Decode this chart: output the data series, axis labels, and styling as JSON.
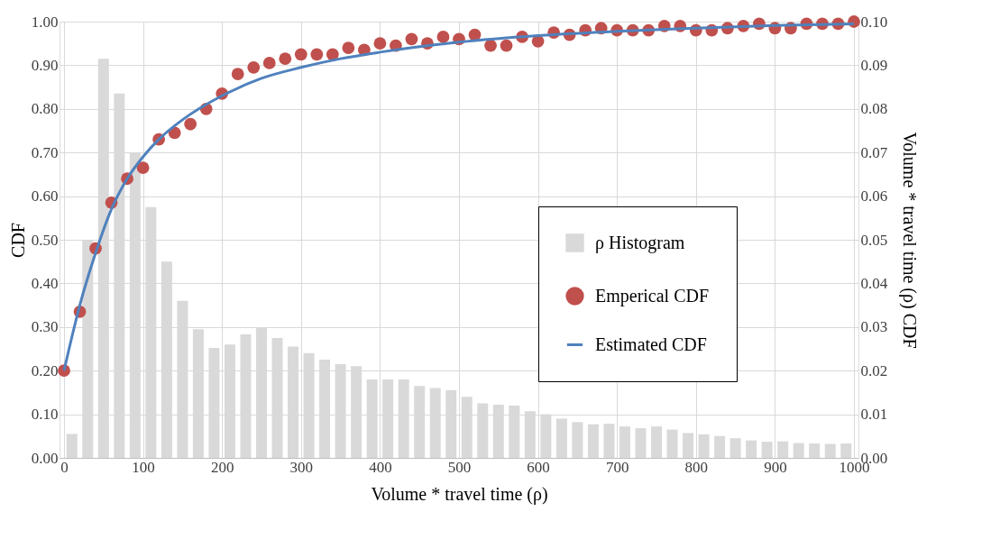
{
  "chart_data": {
    "type": "bar",
    "xlabel": "Volume * travel time (ρ)",
    "ylabel": "CDF",
    "y2label": "Volume * travel time (ρ) CDF",
    "xlim": [
      0,
      1000
    ],
    "xticks": [
      0,
      100,
      200,
      300,
      400,
      500,
      600,
      700,
      800,
      900,
      1000
    ],
    "ylim": [
      0,
      1
    ],
    "yticks": [
      {
        "value": 0,
        "label": "0.00"
      },
      {
        "value": 0.1,
        "label": "0.10"
      },
      {
        "value": 0.2,
        "label": "0.20"
      },
      {
        "value": 0.3,
        "label": "0.30"
      },
      {
        "value": 0.4,
        "label": "0.40"
      },
      {
        "value": 0.5,
        "label": "0.50"
      },
      {
        "value": 0.6,
        "label": "0.60"
      },
      {
        "value": 0.7,
        "label": "0.70"
      },
      {
        "value": 0.8,
        "label": "0.80"
      },
      {
        "value": 0.9,
        "label": "0.90"
      },
      {
        "value": 1,
        "label": "1.00"
      }
    ],
    "y2lim": [
      0,
      0.1
    ],
    "y2ticks": [
      {
        "value": 0,
        "label": "0.00"
      },
      {
        "value": 0.01,
        "label": "0.01"
      },
      {
        "value": 0.02,
        "label": "0.02"
      },
      {
        "value": 0.03,
        "label": "0.03"
      },
      {
        "value": 0.04,
        "label": "0.04"
      },
      {
        "value": 0.05,
        "label": "0.05"
      },
      {
        "value": 0.06,
        "label": "0.06"
      },
      {
        "value": 0.07,
        "label": "0.07"
      },
      {
        "value": 0.08,
        "label": "0.08"
      },
      {
        "value": 0.09,
        "label": "0.09"
      },
      {
        "value": 0.1,
        "label": "0.10"
      }
    ],
    "grid": true,
    "legend": "right",
    "series": [
      {
        "name": "ρ Histogram",
        "axis": "y2",
        "color": "#d9d9d9",
        "x": [
          10,
          30,
          50,
          70,
          90,
          110,
          130,
          150,
          170,
          190,
          210,
          230,
          250,
          270,
          290,
          310,
          330,
          350,
          370,
          390,
          410,
          430,
          450,
          470,
          490,
          510,
          530,
          550,
          570,
          590,
          610,
          630,
          650,
          670,
          690,
          710,
          730,
          750,
          770,
          790,
          810,
          830,
          850,
          870,
          890,
          910,
          930,
          950,
          970,
          990
        ],
        "values": [
          0.0055,
          0.0498,
          0.0915,
          0.0835,
          0.07,
          0.0575,
          0.045,
          0.036,
          0.0295,
          0.0252,
          0.026,
          0.0283,
          0.0298,
          0.0275,
          0.0255,
          0.024,
          0.0225,
          0.0215,
          0.021,
          0.018,
          0.018,
          0.018,
          0.0165,
          0.016,
          0.0155,
          0.014,
          0.0125,
          0.0122,
          0.012,
          0.0107,
          0.01,
          0.009,
          0.0082,
          0.0077,
          0.0078,
          0.0072,
          0.0068,
          0.0072,
          0.0065,
          0.0057,
          0.0054,
          0.005,
          0.0045,
          0.004,
          0.0037,
          0.0038,
          0.0034,
          0.0033,
          0.0032,
          0.0033
        ]
      },
      {
        "name": "Emperical CDF",
        "type": "scatter",
        "marker": "circle",
        "color": "#c0504d",
        "x": [
          0,
          20,
          40,
          60,
          80,
          100,
          120,
          140,
          160,
          180,
          200,
          220,
          240,
          260,
          280,
          300,
          320,
          340,
          360,
          380,
          400,
          420,
          440,
          460,
          480,
          500,
          520,
          540,
          560,
          580,
          600,
          620,
          640,
          660,
          680,
          700,
          720,
          740,
          760,
          780,
          800,
          820,
          840,
          860,
          880,
          900,
          920,
          940,
          960,
          980,
          1000
        ],
        "values": [
          0.2,
          0.335,
          0.48,
          0.585,
          0.64,
          0.665,
          0.73,
          0.745,
          0.765,
          0.8,
          0.835,
          0.88,
          0.895,
          0.905,
          0.915,
          0.925,
          0.925,
          0.925,
          0.94,
          0.935,
          0.95,
          0.945,
          0.96,
          0.95,
          0.965,
          0.96,
          0.97,
          0.945,
          0.945,
          0.965,
          0.955,
          0.975,
          0.97,
          0.98,
          0.985,
          0.98,
          0.98,
          0.98,
          0.99,
          0.99,
          0.98,
          0.98,
          0.985,
          0.99,
          0.995,
          0.985,
          0.985,
          0.995,
          0.995,
          0.995,
          1.0
        ]
      },
      {
        "name": "Estimated CDF",
        "type": "line",
        "line_style": "solid",
        "color": "#4f81bd",
        "x": [
          0,
          20,
          40,
          60,
          80,
          100,
          120,
          150,
          200,
          250,
          300,
          350,
          400,
          500,
          600,
          700,
          800,
          900,
          1000
        ],
        "values": [
          0.2,
          0.35,
          0.47,
          0.57,
          0.64,
          0.69,
          0.73,
          0.775,
          0.83,
          0.87,
          0.895,
          0.915,
          0.93,
          0.953,
          0.968,
          0.978,
          0.985,
          0.991,
          0.995
        ]
      }
    ]
  }
}
